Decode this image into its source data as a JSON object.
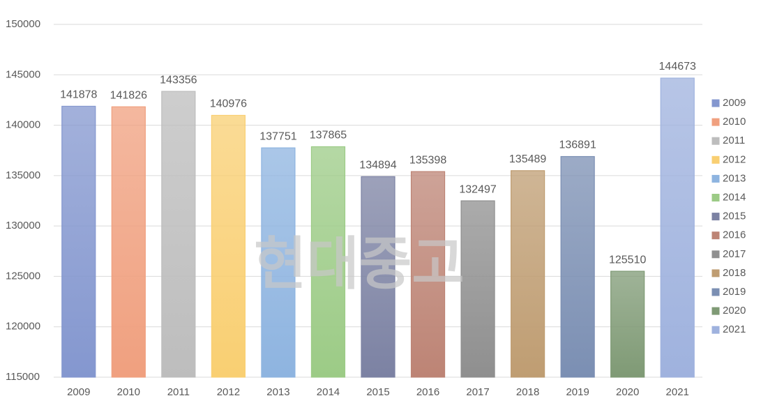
{
  "chart_data": {
    "type": "bar",
    "categories": [
      "2009",
      "2010",
      "2011",
      "2012",
      "2013",
      "2014",
      "2015",
      "2016",
      "2017",
      "2018",
      "2019",
      "2020",
      "2021"
    ],
    "values": [
      141878,
      141826,
      143356,
      140976,
      137751,
      137865,
      134894,
      135398,
      132497,
      135489,
      136891,
      125510,
      144673
    ],
    "colors": [
      "#8497cf",
      "#f0a07f",
      "#bdbdbd",
      "#f9cf72",
      "#8eb4e0",
      "#9ccb86",
      "#7c82a3",
      "#bd8475",
      "#8f8f8f",
      "#bf9d72",
      "#7b8fb3",
      "#7f9a75",
      "#9fb2de"
    ],
    "ylim": [
      115000,
      150000
    ],
    "yticks": [
      115000,
      120000,
      125000,
      130000,
      135000,
      140000,
      145000,
      150000
    ],
    "grid": true,
    "legend": "right",
    "watermark": "현대중고"
  }
}
